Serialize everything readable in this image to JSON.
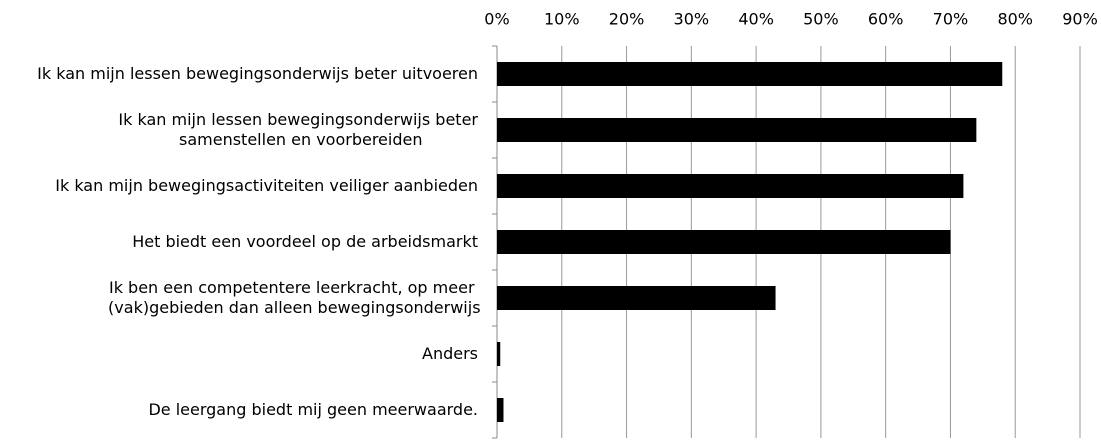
{
  "chart_data": {
    "type": "bar",
    "orientation": "horizontal",
    "categories": [
      "Ik kan mijn lessen bewegingsonderwijs beter uitvoeren",
      "Ik kan mijn lessen bewegingsonderwijs beter samenstellen en voorbereiden",
      "Ik kan mijn bewegingsactiviteiten veiliger aanbieden",
      "Het biedt een voordeel op de arbeidsmarkt",
      "Ik ben een competentere leerkracht, op meer (vak)gebieden dan alleen bewegingsonderwijs",
      "Anders",
      "De leergang biedt mij geen meerwaarde."
    ],
    "values": [
      78,
      74,
      72,
      70,
      43,
      0.5,
      1
    ],
    "color": "#000000",
    "xlim": [
      0,
      90
    ],
    "xticks": [
      {
        "value": 0,
        "label": "0%"
      },
      {
        "value": 10,
        "label": "10%"
      },
      {
        "value": 20,
        "label": "20%"
      },
      {
        "value": 30,
        "label": "30%"
      },
      {
        "value": 40,
        "label": "40%"
      },
      {
        "value": 50,
        "label": "50%"
      },
      {
        "value": 60,
        "label": "60%"
      },
      {
        "value": 70,
        "label": "70%"
      },
      {
        "value": 80,
        "label": "80%"
      },
      {
        "value": 90,
        "label": "90%"
      }
    ],
    "grid": true
  }
}
